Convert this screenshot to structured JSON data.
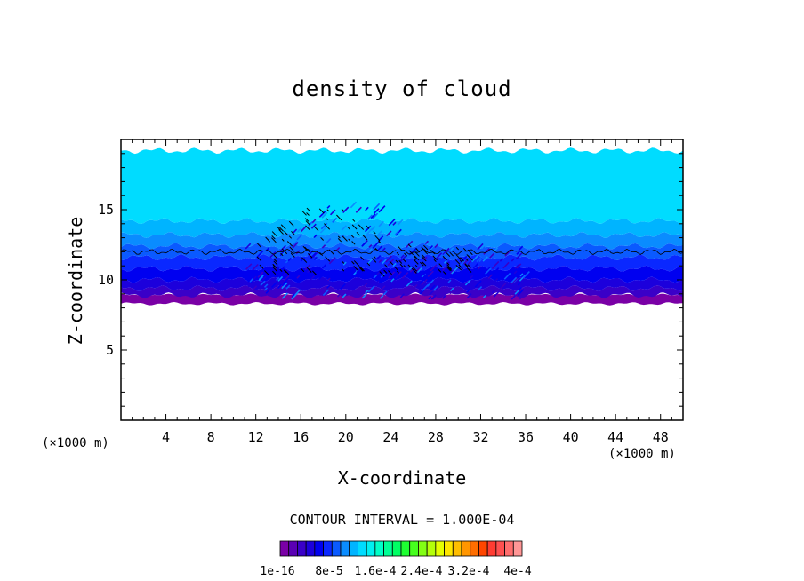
{
  "chart_data": {
    "type": "heatmap",
    "title": "density of cloud",
    "xlabel": "X-coordinate",
    "ylabel": "Z-coordinate",
    "x_multiplier_left": "(×1000 m)",
    "x_multiplier_right": "(×1000 m)",
    "xlim": [
      0,
      50
    ],
    "ylim": [
      0,
      20
    ],
    "x_ticks": [
      4,
      8,
      12,
      16,
      20,
      24,
      28,
      32,
      36,
      40,
      44,
      48
    ],
    "y_ticks": [
      5,
      10,
      15
    ],
    "contour_interval_label": "CONTOUR INTERVAL = 1.000E-04",
    "cloud_base_z": 8.3,
    "cloud_top_z": 19.2,
    "colorbar": {
      "tick_labels": [
        "1e-16",
        "8e-5",
        "1.6e-4",
        "2.4e-4",
        "3.2e-4",
        "4e-4"
      ],
      "colors": [
        "#7a00a6",
        "#5a00b4",
        "#3a00c8",
        "#1c00dc",
        "#0000f0",
        "#0a28ff",
        "#0a5aff",
        "#0a8cff",
        "#00b4ff",
        "#00dcff",
        "#00f0f0",
        "#00ffc8",
        "#00ff96",
        "#00ff64",
        "#1eff32",
        "#46ff1e",
        "#82ff14",
        "#b4ff0a",
        "#e6ff00",
        "#ffe600",
        "#ffbe00",
        "#ff9600",
        "#ff6e00",
        "#ff4600",
        "#ff3c32",
        "#ff5050",
        "#ff6e6e",
        "#ff9696"
      ]
    },
    "color_layers": [
      {
        "z_min": 8.3,
        "z_max": 8.9,
        "color": "#7a00a6"
      },
      {
        "z_min": 8.9,
        "z_max": 9.4,
        "color": "#3a00c8"
      },
      {
        "z_min": 9.4,
        "z_max": 10.0,
        "color": "#1c00dc"
      },
      {
        "z_min": 10.0,
        "z_max": 10.8,
        "color": "#0000f0"
      },
      {
        "z_min": 10.8,
        "z_max": 11.6,
        "color": "#0a28ff"
      },
      {
        "z_min": 11.6,
        "z_max": 12.4,
        "color": "#0a5aff"
      },
      {
        "z_min": 12.4,
        "z_max": 13.2,
        "color": "#0a8cff"
      },
      {
        "z_min": 13.2,
        "z_max": 14.2,
        "color": "#00b4ff"
      },
      {
        "z_min": 14.2,
        "z_max": 19.2,
        "color": "#00dcff"
      }
    ],
    "contour_line_z": 12.0,
    "turbulent_region_x": [
      11,
      36
    ]
  }
}
